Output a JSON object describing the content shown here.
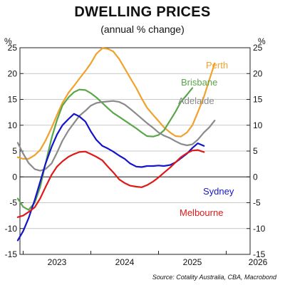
{
  "header": {
    "title": "DWELLING PRICES",
    "subtitle": "(annual % change)",
    "unit_left": "%",
    "unit_right": "%",
    "source": "Source: Cotality Australia, CBA, Macrobond"
  },
  "chart_data": {
    "type": "line",
    "title": "DWELLING PRICES",
    "subtitle": "(annual % change)",
    "ylabel": "%",
    "ylim": [
      -15,
      25
    ],
    "yticks": [
      -15,
      -10,
      -5,
      0,
      5,
      10,
      15,
      20,
      25
    ],
    "xlim": [
      2022.4,
      2025.85
    ],
    "xticks": [
      {
        "label": "2023",
        "pos": 2023.0
      },
      {
        "label": "2024",
        "pos": 2024.0
      },
      {
        "label": "2025",
        "pos": 2025.0
      },
      {
        "label": "2026",
        "pos": 2026.0
      }
    ],
    "x": [
      2022.42,
      2022.5,
      2022.58,
      2022.67,
      2022.75,
      2022.83,
      2022.92,
      2023.0,
      2023.08,
      2023.17,
      2023.25,
      2023.33,
      2023.42,
      2023.5,
      2023.58,
      2023.67,
      2023.75,
      2023.83,
      2023.92,
      2024.0,
      2024.08,
      2024.17,
      2024.25,
      2024.33,
      2024.42,
      2024.5,
      2024.58,
      2024.67,
      2024.75,
      2024.83,
      2024.92,
      2025.0,
      2025.08,
      2025.17,
      2025.25,
      2025.33,
      2025.42,
      2025.5,
      2025.58,
      2025.67
    ],
    "series": [
      {
        "name": "Perth",
        "color": "#f2a12b",
        "values": [
          3.8,
          3.5,
          3.5,
          4.2,
          5.2,
          7.0,
          9.5,
          12.0,
          14.3,
          16.3,
          17.6,
          19.0,
          20.5,
          22.0,
          23.8,
          24.9,
          24.8,
          24.3,
          22.8,
          21.0,
          19.2,
          17.2,
          15.2,
          13.4,
          12.0,
          10.8,
          9.6,
          8.6,
          7.9,
          7.8,
          8.6,
          10.0,
          12.5,
          15.5,
          18.8,
          22.0,
          null,
          null,
          null,
          null
        ]
      },
      {
        "name": "Brisbane",
        "color": "#5aa64a",
        "values": [
          -4.2,
          -5.8,
          -6.4,
          -5.0,
          -2.0,
          2.5,
          7.5,
          11.0,
          13.8,
          15.4,
          16.4,
          16.9,
          16.8,
          16.2,
          15.4,
          14.3,
          13.3,
          12.4,
          11.6,
          10.9,
          10.2,
          9.4,
          8.6,
          7.9,
          7.8,
          8.1,
          9.0,
          10.9,
          12.6,
          14.5,
          15.9,
          17.2,
          null,
          null,
          null,
          null,
          null,
          null,
          null,
          null
        ]
      },
      {
        "name": "Adelaide",
        "color": "#8a8a8a",
        "values": [
          6.6,
          4.5,
          2.7,
          1.5,
          1.2,
          1.5,
          2.6,
          4.7,
          7.0,
          9.0,
          10.4,
          11.8,
          12.8,
          13.8,
          14.3,
          14.5,
          14.6,
          14.7,
          14.5,
          14.0,
          13.2,
          12.2,
          11.3,
          10.4,
          9.5,
          8.6,
          8.0,
          7.5,
          6.9,
          6.4,
          6.1,
          6.3,
          7.2,
          8.6,
          9.6,
          10.9,
          null,
          null,
          null,
          null
        ]
      },
      {
        "name": "Sydney",
        "color": "#1414cc",
        "values": [
          -12.3,
          -10.5,
          -8.0,
          -4.5,
          -1.0,
          2.5,
          5.8,
          8.2,
          10.0,
          11.2,
          12.2,
          11.7,
          10.7,
          8.8,
          7.2,
          6.0,
          5.5,
          4.9,
          4.1,
          3.5,
          2.6,
          2.0,
          1.9,
          2.1,
          2.1,
          2.2,
          2.1,
          2.3,
          2.8,
          3.6,
          4.5,
          5.6,
          6.5,
          6.0,
          null,
          null,
          null,
          null,
          null,
          null
        ]
      },
      {
        "name": "Melbourne",
        "color": "#e01818",
        "values": [
          -7.8,
          -7.5,
          -6.8,
          -5.9,
          -4.2,
          -2.0,
          0.4,
          2.0,
          3.0,
          3.9,
          4.4,
          4.8,
          4.9,
          4.4,
          3.9,
          3.2,
          2.0,
          0.9,
          -0.5,
          -1.2,
          -1.7,
          -1.9,
          -2.0,
          -1.6,
          -0.9,
          -0.1,
          0.8,
          1.8,
          2.8,
          3.8,
          4.6,
          5.1,
          5.2,
          4.8,
          null,
          null,
          null,
          null,
          null,
          null
        ]
      }
    ],
    "labels": {
      "perth": "Perth",
      "brisbane": "Brisbane",
      "adelaide": "Adelaide",
      "sydney": "Sydney",
      "melbourne": "Melbourne"
    },
    "grid": true
  }
}
